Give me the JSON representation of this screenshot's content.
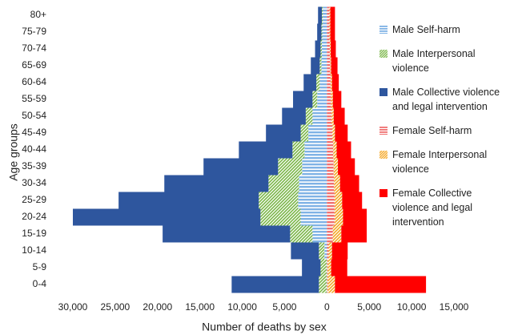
{
  "chart_data": {
    "type": "pyramid",
    "xlabel": "Number of deaths by sex",
    "ylabel": "Age groups",
    "categories": [
      "0-4",
      "5-9",
      "10-14",
      "15-19",
      "20-24",
      "25-29",
      "30-34",
      "35-39",
      "40-44",
      "45-49",
      "50-54",
      "55-59",
      "60-64",
      "65-69",
      "70-74",
      "75-79",
      "80+"
    ],
    "xlim": [
      -30000,
      15000
    ],
    "xticks": [
      {
        "value": -30000,
        "label": "30,000"
      },
      {
        "value": -25000,
        "label": "25,000"
      },
      {
        "value": -20000,
        "label": "20,000"
      },
      {
        "value": -15000,
        "label": "15,000"
      },
      {
        "value": -10000,
        "label": "10,000"
      },
      {
        "value": -5000,
        "label": "5,000"
      },
      0,
      {
        "value": 5000,
        "label": "5,000"
      },
      {
        "value": 10000,
        "label": "10,000"
      },
      {
        "value": 15000,
        "label": "15,000"
      }
    ],
    "series": [
      {
        "name": "Male Self-harm",
        "color": "#7fb2e5",
        "pattern": "horizontal",
        "values": [
          -50,
          -50,
          -300,
          -1700,
          -3100,
          -3400,
          -3300,
          -2930,
          -2650,
          -2200,
          -1700,
          -1150,
          -850,
          -650,
          -600,
          -550,
          -500
        ]
      },
      {
        "name": "Male Interpersonal violence",
        "color": "#7ab648",
        "pattern": "diagonal",
        "values": [
          -900,
          -700,
          -650,
          -2650,
          -4750,
          -4650,
          -3600,
          -2840,
          -1420,
          -900,
          -800,
          -550,
          -400,
          -200,
          -150,
          -100,
          -100
        ]
      },
      {
        "name": "Male Collective violence and legal intervention",
        "color": "#2e569e",
        "pattern": "solid",
        "values": [
          -10300,
          -2200,
          -3300,
          -15050,
          -22150,
          -16550,
          -12300,
          -8800,
          -6330,
          -4100,
          -2800,
          -2300,
          -1500,
          -1050,
          -650,
          -500,
          -450
        ]
      },
      {
        "name": "Female Self-harm",
        "color": "#f07070",
        "pattern": "horizontal",
        "values": [
          100,
          100,
          200,
          700,
          900,
          900,
          850,
          800,
          750,
          650,
          550,
          500,
          450,
          400,
          350,
          300,
          300
        ]
      },
      {
        "name": "Female Interpersonal violence",
        "color": "#f5a623",
        "pattern": "diagonal",
        "values": [
          850,
          400,
          400,
          1000,
          1000,
          900,
          700,
          500,
          400,
          300,
          250,
          200,
          150,
          100,
          100,
          100,
          100
        ]
      },
      {
        "name": "Female Collective violence and legal intervention",
        "color": "#ff0000",
        "pattern": "solid",
        "values": [
          10750,
          1900,
          1850,
          3000,
          2800,
          2350,
          2250,
          2000,
          1700,
          1500,
          1300,
          1000,
          800,
          750,
          600,
          550,
          550
        ]
      }
    ]
  }
}
